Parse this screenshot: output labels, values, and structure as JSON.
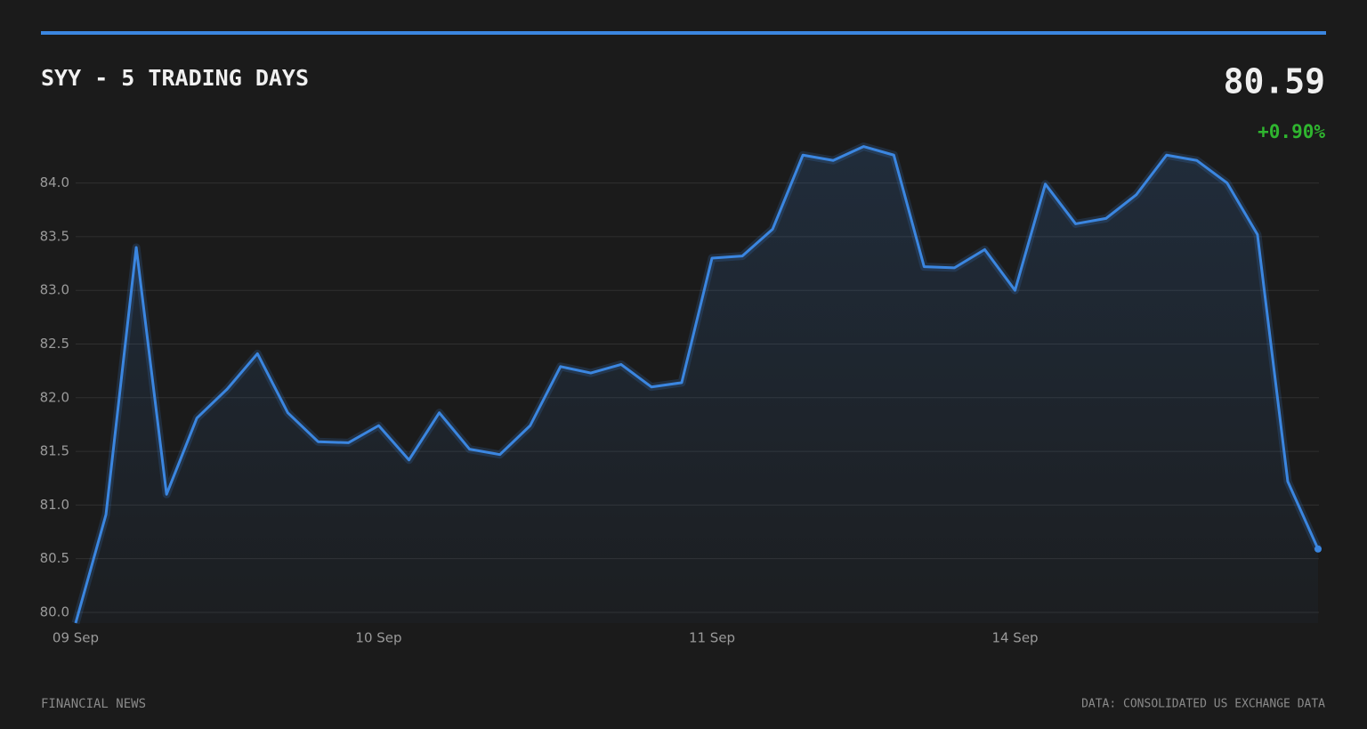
{
  "header": {
    "title": "SYY - 5 TRADING DAYS",
    "price": "80.59",
    "change": "+0.90%"
  },
  "chart_data": {
    "type": "line",
    "categories": [
      "09 Sep",
      null,
      null,
      null,
      null,
      null,
      null,
      null,
      null,
      null,
      "10 Sep",
      null,
      null,
      null,
      null,
      null,
      null,
      null,
      null,
      null,
      null,
      "11 Sep",
      null,
      null,
      null,
      null,
      null,
      null,
      null,
      null,
      null,
      "14 Sep",
      null,
      null,
      null,
      null,
      null,
      null,
      null,
      null,
      null,
      null
    ],
    "series": [
      {
        "color": "#3b86e0",
        "values": [
          79.9,
          80.91,
          83.4,
          81.1,
          81.81,
          82.08,
          82.41,
          81.86,
          81.59,
          81.58,
          81.74,
          81.42,
          81.86,
          81.52,
          81.47,
          81.74,
          82.29,
          82.23,
          82.31,
          82.1,
          82.14,
          83.3,
          83.32,
          83.57,
          84.26,
          84.21,
          84.34,
          84.26,
          83.22,
          83.21,
          83.38,
          83.0,
          83.99,
          83.62,
          83.67,
          83.89,
          84.26,
          84.21,
          84.0,
          83.52,
          81.22,
          80.59
        ]
      }
    ],
    "ylim": [
      79.9,
      84.35
    ],
    "yticks": [
      {
        "value": 80,
        "label": "80.0"
      },
      80.5,
      {
        "value": 81,
        "label": "81.0"
      },
      81.5,
      {
        "value": 82,
        "label": "82.0"
      },
      82.5,
      {
        "value": 83,
        "label": "83.0"
      },
      83.5,
      {
        "value": 84,
        "label": "84.0"
      }
    ],
    "grid": true
  },
  "footer": {
    "left": "FINANCIAL NEWS",
    "right": "DATA: CONSOLIDATED US EXCHANGE DATA"
  }
}
